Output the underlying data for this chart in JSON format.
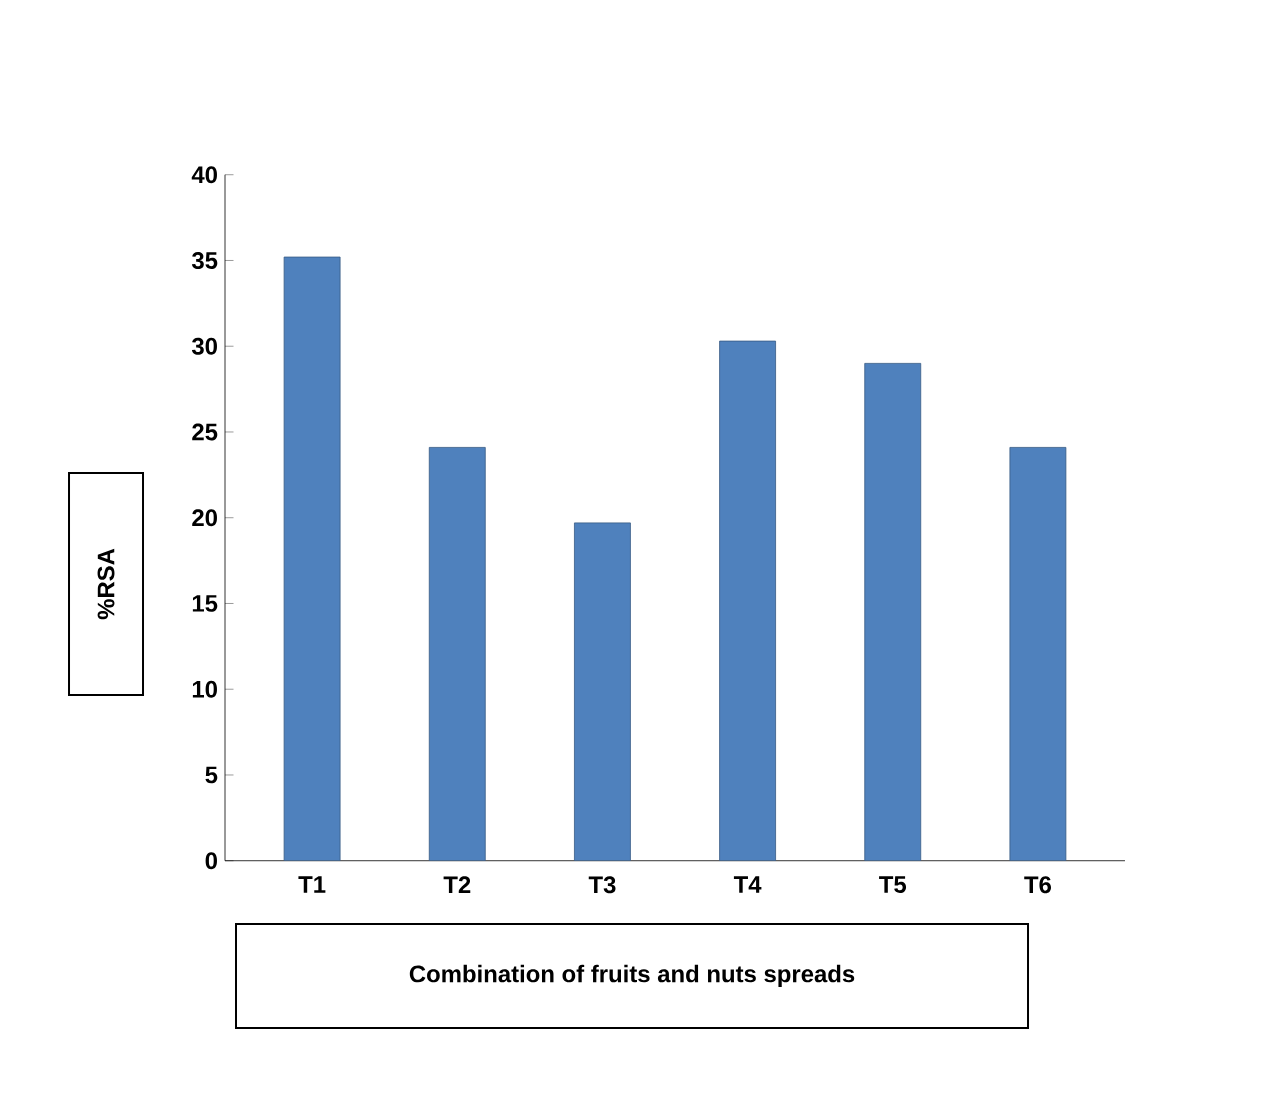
{
  "chart_data": {
    "type": "bar",
    "xlabel": "Combination of fruits and nuts spreads",
    "ylabel": "%RSA",
    "categories": [
      "T1",
      "T2",
      "T3",
      "T4",
      "T5",
      "T6"
    ],
    "values": [
      35.2,
      24.1,
      19.7,
      30.3,
      29.0,
      24.1
    ],
    "color": "#4f81bd",
    "ylim": [
      0,
      40
    ],
    "yticks": [
      0,
      5,
      10,
      15,
      20,
      25,
      30,
      35,
      40
    ],
    "grid": false
  }
}
